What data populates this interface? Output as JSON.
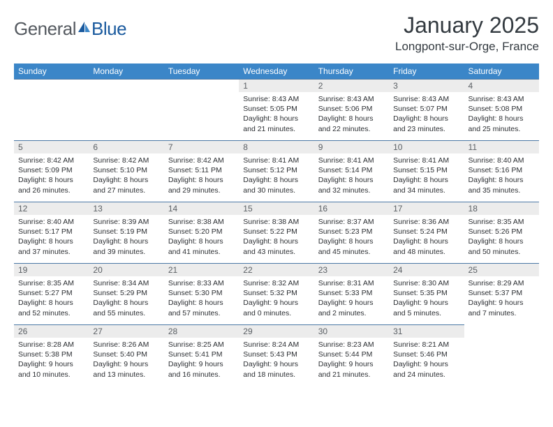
{
  "logo": {
    "text1": "General",
    "text2": "Blue"
  },
  "title": "January 2025",
  "location": "Longpont-sur-Orge, France",
  "colors": {
    "header_bg": "#3b86c8",
    "header_fg": "#ffffff",
    "daynum_bg": "#ececec",
    "daynum_fg": "#5a5f64",
    "row_divider": "#4a78a5",
    "logo_gray": "#555a60",
    "logo_blue": "#1a5a9e",
    "text": "#2c2f33"
  },
  "weekdays": [
    "Sunday",
    "Monday",
    "Tuesday",
    "Wednesday",
    "Thursday",
    "Friday",
    "Saturday"
  ],
  "weeks": [
    [
      null,
      null,
      null,
      {
        "d": "1",
        "sr": "8:43 AM",
        "ss": "5:05 PM",
        "dl1": "8 hours",
        "dl2": "and 21 minutes."
      },
      {
        "d": "2",
        "sr": "8:43 AM",
        "ss": "5:06 PM",
        "dl1": "8 hours",
        "dl2": "and 22 minutes."
      },
      {
        "d": "3",
        "sr": "8:43 AM",
        "ss": "5:07 PM",
        "dl1": "8 hours",
        "dl2": "and 23 minutes."
      },
      {
        "d": "4",
        "sr": "8:43 AM",
        "ss": "5:08 PM",
        "dl1": "8 hours",
        "dl2": "and 25 minutes."
      }
    ],
    [
      {
        "d": "5",
        "sr": "8:42 AM",
        "ss": "5:09 PM",
        "dl1": "8 hours",
        "dl2": "and 26 minutes."
      },
      {
        "d": "6",
        "sr": "8:42 AM",
        "ss": "5:10 PM",
        "dl1": "8 hours",
        "dl2": "and 27 minutes."
      },
      {
        "d": "7",
        "sr": "8:42 AM",
        "ss": "5:11 PM",
        "dl1": "8 hours",
        "dl2": "and 29 minutes."
      },
      {
        "d": "8",
        "sr": "8:41 AM",
        "ss": "5:12 PM",
        "dl1": "8 hours",
        "dl2": "and 30 minutes."
      },
      {
        "d": "9",
        "sr": "8:41 AM",
        "ss": "5:14 PM",
        "dl1": "8 hours",
        "dl2": "and 32 minutes."
      },
      {
        "d": "10",
        "sr": "8:41 AM",
        "ss": "5:15 PM",
        "dl1": "8 hours",
        "dl2": "and 34 minutes."
      },
      {
        "d": "11",
        "sr": "8:40 AM",
        "ss": "5:16 PM",
        "dl1": "8 hours",
        "dl2": "and 35 minutes."
      }
    ],
    [
      {
        "d": "12",
        "sr": "8:40 AM",
        "ss": "5:17 PM",
        "dl1": "8 hours",
        "dl2": "and 37 minutes."
      },
      {
        "d": "13",
        "sr": "8:39 AM",
        "ss": "5:19 PM",
        "dl1": "8 hours",
        "dl2": "and 39 minutes."
      },
      {
        "d": "14",
        "sr": "8:38 AM",
        "ss": "5:20 PM",
        "dl1": "8 hours",
        "dl2": "and 41 minutes."
      },
      {
        "d": "15",
        "sr": "8:38 AM",
        "ss": "5:22 PM",
        "dl1": "8 hours",
        "dl2": "and 43 minutes."
      },
      {
        "d": "16",
        "sr": "8:37 AM",
        "ss": "5:23 PM",
        "dl1": "8 hours",
        "dl2": "and 45 minutes."
      },
      {
        "d": "17",
        "sr": "8:36 AM",
        "ss": "5:24 PM",
        "dl1": "8 hours",
        "dl2": "and 48 minutes."
      },
      {
        "d": "18",
        "sr": "8:35 AM",
        "ss": "5:26 PM",
        "dl1": "8 hours",
        "dl2": "and 50 minutes."
      }
    ],
    [
      {
        "d": "19",
        "sr": "8:35 AM",
        "ss": "5:27 PM",
        "dl1": "8 hours",
        "dl2": "and 52 minutes."
      },
      {
        "d": "20",
        "sr": "8:34 AM",
        "ss": "5:29 PM",
        "dl1": "8 hours",
        "dl2": "and 55 minutes."
      },
      {
        "d": "21",
        "sr": "8:33 AM",
        "ss": "5:30 PM",
        "dl1": "8 hours",
        "dl2": "and 57 minutes."
      },
      {
        "d": "22",
        "sr": "8:32 AM",
        "ss": "5:32 PM",
        "dl1": "9 hours",
        "dl2": "and 0 minutes."
      },
      {
        "d": "23",
        "sr": "8:31 AM",
        "ss": "5:33 PM",
        "dl1": "9 hours",
        "dl2": "and 2 minutes."
      },
      {
        "d": "24",
        "sr": "8:30 AM",
        "ss": "5:35 PM",
        "dl1": "9 hours",
        "dl2": "and 5 minutes."
      },
      {
        "d": "25",
        "sr": "8:29 AM",
        "ss": "5:37 PM",
        "dl1": "9 hours",
        "dl2": "and 7 minutes."
      }
    ],
    [
      {
        "d": "26",
        "sr": "8:28 AM",
        "ss": "5:38 PM",
        "dl1": "9 hours",
        "dl2": "and 10 minutes."
      },
      {
        "d": "27",
        "sr": "8:26 AM",
        "ss": "5:40 PM",
        "dl1": "9 hours",
        "dl2": "and 13 minutes."
      },
      {
        "d": "28",
        "sr": "8:25 AM",
        "ss": "5:41 PM",
        "dl1": "9 hours",
        "dl2": "and 16 minutes."
      },
      {
        "d": "29",
        "sr": "8:24 AM",
        "ss": "5:43 PM",
        "dl1": "9 hours",
        "dl2": "and 18 minutes."
      },
      {
        "d": "30",
        "sr": "8:23 AM",
        "ss": "5:44 PM",
        "dl1": "9 hours",
        "dl2": "and 21 minutes."
      },
      {
        "d": "31",
        "sr": "8:21 AM",
        "ss": "5:46 PM",
        "dl1": "9 hours",
        "dl2": "and 24 minutes."
      },
      null
    ]
  ],
  "labels": {
    "sunrise": "Sunrise:",
    "sunset": "Sunset:",
    "daylight": "Daylight:"
  }
}
